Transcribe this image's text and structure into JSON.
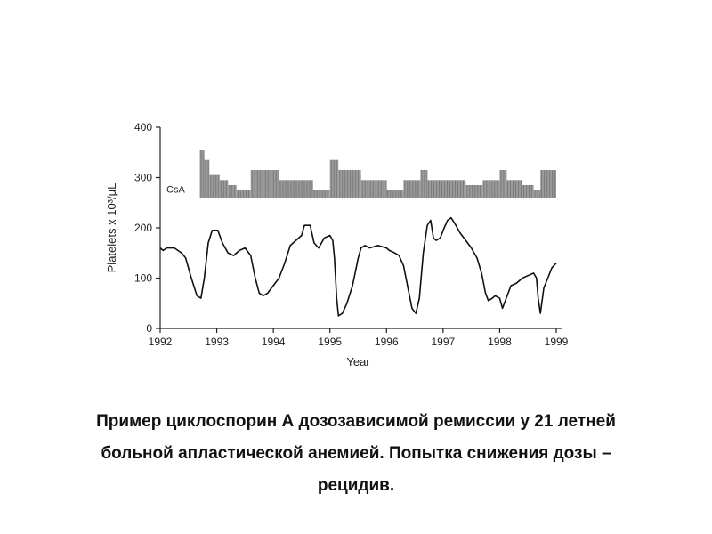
{
  "chart_data": {
    "type": "line",
    "ylabel": "Platelets x 10³/μL",
    "xlabel": "Year",
    "xlim": [
      1992,
      1999
    ],
    "ylim": [
      0,
      400
    ],
    "x_ticks": [
      "1992",
      "1993",
      "1994",
      "1995",
      "1996",
      "1997",
      "1998",
      "1999"
    ],
    "y_ticks": [
      "0",
      "100",
      "200",
      "300",
      "400"
    ],
    "grid": false,
    "colors": {
      "line": "#111111",
      "bars": "#9a9a9a",
      "axis": "#222222"
    },
    "series": [
      {
        "points": [
          [
            1992.0,
            160
          ],
          [
            1992.05,
            155
          ],
          [
            1992.12,
            160
          ],
          [
            1992.25,
            160
          ],
          [
            1992.38,
            150
          ],
          [
            1992.45,
            140
          ],
          [
            1992.55,
            100
          ],
          [
            1992.65,
            65
          ],
          [
            1992.72,
            60
          ],
          [
            1992.78,
            100
          ],
          [
            1992.85,
            170
          ],
          [
            1992.92,
            195
          ],
          [
            1993.02,
            195
          ],
          [
            1993.1,
            170
          ],
          [
            1993.2,
            150
          ],
          [
            1993.3,
            145
          ],
          [
            1993.4,
            155
          ],
          [
            1993.5,
            160
          ],
          [
            1993.6,
            145
          ],
          [
            1993.68,
            100
          ],
          [
            1993.75,
            70
          ],
          [
            1993.82,
            65
          ],
          [
            1993.9,
            70
          ],
          [
            1994.0,
            85
          ],
          [
            1994.1,
            100
          ],
          [
            1994.2,
            130
          ],
          [
            1994.3,
            165
          ],
          [
            1994.4,
            175
          ],
          [
            1994.5,
            185
          ],
          [
            1994.55,
            205
          ],
          [
            1994.65,
            205
          ],
          [
            1994.72,
            170
          ],
          [
            1994.8,
            160
          ],
          [
            1994.9,
            180
          ],
          [
            1995.0,
            185
          ],
          [
            1995.05,
            175
          ],
          [
            1995.08,
            140
          ],
          [
            1995.12,
            60
          ],
          [
            1995.15,
            25
          ],
          [
            1995.22,
            30
          ],
          [
            1995.3,
            50
          ],
          [
            1995.4,
            85
          ],
          [
            1995.5,
            140
          ],
          [
            1995.55,
            160
          ],
          [
            1995.62,
            165
          ],
          [
            1995.7,
            160
          ],
          [
            1995.85,
            165
          ],
          [
            1996.0,
            160
          ],
          [
            1996.05,
            155
          ],
          [
            1996.15,
            150
          ],
          [
            1996.22,
            145
          ],
          [
            1996.3,
            125
          ],
          [
            1996.38,
            80
          ],
          [
            1996.45,
            40
          ],
          [
            1996.52,
            30
          ],
          [
            1996.58,
            60
          ],
          [
            1996.65,
            150
          ],
          [
            1996.72,
            205
          ],
          [
            1996.78,
            215
          ],
          [
            1996.83,
            180
          ],
          [
            1996.88,
            175
          ],
          [
            1996.95,
            180
          ],
          [
            1997.02,
            200
          ],
          [
            1997.08,
            215
          ],
          [
            1997.14,
            220
          ],
          [
            1997.2,
            210
          ],
          [
            1997.3,
            190
          ],
          [
            1997.4,
            175
          ],
          [
            1997.5,
            160
          ],
          [
            1997.6,
            140
          ],
          [
            1997.68,
            110
          ],
          [
            1997.75,
            70
          ],
          [
            1997.8,
            55
          ],
          [
            1997.87,
            60
          ],
          [
            1997.92,
            65
          ],
          [
            1998.0,
            60
          ],
          [
            1998.05,
            40
          ],
          [
            1998.1,
            55
          ],
          [
            1998.2,
            85
          ],
          [
            1998.3,
            90
          ],
          [
            1998.4,
            100
          ],
          [
            1998.5,
            105
          ],
          [
            1998.6,
            110
          ],
          [
            1998.65,
            100
          ],
          [
            1998.68,
            60
          ],
          [
            1998.72,
            30
          ],
          [
            1998.78,
            80
          ],
          [
            1998.85,
            100
          ],
          [
            1998.92,
            120
          ],
          [
            1999.0,
            130
          ]
        ]
      }
    ],
    "annotation": {
      "label": "CsA",
      "bars_note": "Gray bar strip above the curve shows CsA dose level over time (relative scale).",
      "dose_steps": [
        [
          1992.7,
          1992.78,
          355
        ],
        [
          1992.78,
          1992.87,
          335
        ],
        [
          1992.87,
          1993.05,
          305
        ],
        [
          1993.05,
          1993.2,
          295
        ],
        [
          1993.2,
          1993.35,
          285
        ],
        [
          1993.35,
          1993.6,
          275
        ],
        [
          1993.6,
          1994.1,
          315
        ],
        [
          1994.1,
          1994.7,
          295
        ],
        [
          1994.7,
          1995.0,
          275
        ],
        [
          1995.0,
          1995.15,
          335
        ],
        [
          1995.15,
          1995.55,
          315
        ],
        [
          1995.55,
          1996.0,
          295
        ],
        [
          1996.0,
          1996.3,
          275
        ],
        [
          1996.3,
          1996.6,
          295
        ],
        [
          1996.6,
          1996.72,
          315
        ],
        [
          1996.72,
          1997.4,
          295
        ],
        [
          1997.4,
          1997.7,
          285
        ],
        [
          1997.7,
          1998.0,
          295
        ],
        [
          1998.0,
          1998.12,
          315
        ],
        [
          1998.12,
          1998.4,
          295
        ],
        [
          1998.4,
          1998.6,
          285
        ],
        [
          1998.6,
          1998.72,
          275
        ],
        [
          1998.72,
          1999.0,
          315
        ]
      ]
    }
  },
  "caption": {
    "line1": "Пример циклоспорин А дозозависимой ремиссии у 21 летней",
    "line2": "больной апластической анемией. Попытка снижения дозы –",
    "line3": "рецидив."
  }
}
